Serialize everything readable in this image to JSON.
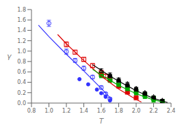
{
  "chart_data": {
    "type": "scatter",
    "title": "",
    "xlabel": "T",
    "ylabel": "γ",
    "xlim": [
      0.8,
      2.4
    ],
    "ylim": [
      0.0,
      1.8
    ],
    "xticks": [
      0.8,
      {
        "value": 1.0,
        "label": "1.0"
      },
      1.2,
      1.4,
      1.6,
      1.8,
      {
        "value": 2.0,
        "label": "2.0"
      },
      2.2,
      2.4
    ],
    "yticks": [
      {
        "value": 0.0,
        "label": "0.0"
      },
      0.2,
      0.4,
      0.6,
      0.8,
      {
        "value": 1.0,
        "label": "1.0"
      },
      1.2,
      1.4,
      1.6,
      1.8
    ],
    "grid": false,
    "series": [
      {
        "type": "scatter",
        "marker": "open_circle",
        "color": "#3333ff",
        "x": [
          1.0,
          1.2,
          1.3,
          1.4,
          1.5,
          1.6,
          1.65,
          1.7
        ],
        "values": [
          1.535,
          0.99,
          0.82,
          0.67,
          0.5,
          0.3,
          0.18,
          0.08
        ],
        "errors": [
          0.06,
          0.05,
          0.04,
          0.04,
          0.035,
          0.03,
          0.025,
          0.02
        ]
      },
      {
        "type": "scatter",
        "marker": "circle",
        "color": "#3333ff",
        "x": [
          1.35,
          1.45,
          1.55,
          1.6,
          1.65,
          1.7
        ],
        "values": [
          0.46,
          0.36,
          0.26,
          0.19,
          0.12,
          0.05
        ]
      },
      {
        "type": "scatter",
        "marker": "open_square",
        "color": "#dd0000",
        "x": [
          1.2,
          1.3,
          1.4,
          1.5,
          1.6,
          1.65,
          1.7,
          1.8,
          1.9,
          2.0
        ],
        "values": [
          1.13,
          0.98,
          0.84,
          0.72,
          0.59,
          0.52,
          0.46,
          0.33,
          0.21,
          0.1
        ],
        "errors": [
          0.05,
          0.04,
          0.04,
          0.04,
          0.03,
          0.03,
          0.03,
          0.025,
          0.02,
          0.015
        ]
      },
      {
        "type": "scatter",
        "marker": "square",
        "color": "#dd0000",
        "x": [
          1.6,
          1.7,
          1.8,
          1.9,
          2.0
        ],
        "values": [
          0.56,
          0.44,
          0.32,
          0.21,
          0.11
        ]
      },
      {
        "type": "scatter",
        "marker": "open_square",
        "color": "#00aa00",
        "x": [
          1.6,
          1.7,
          1.8,
          1.9,
          2.0,
          2.1,
          2.2,
          2.3
        ],
        "values": [
          0.55,
          0.47,
          0.38,
          0.3,
          0.22,
          0.16,
          0.09,
          0.03
        ]
      },
      {
        "type": "scatter",
        "marker": "square",
        "color": "#00aa00",
        "x": [
          1.6,
          1.7,
          1.8,
          1.9,
          2.0,
          2.1,
          2.2
        ],
        "values": [
          0.52,
          0.43,
          0.35,
          0.27,
          0.19,
          0.12,
          0.05
        ]
      },
      {
        "type": "scatter",
        "marker": "open_triangle",
        "color": "#000000",
        "x": [
          1.6,
          1.7,
          1.8,
          1.9,
          2.0,
          2.1,
          2.2,
          2.3
        ],
        "values": [
          0.62,
          0.54,
          0.45,
          0.37,
          0.28,
          0.2,
          0.12,
          0.05
        ],
        "errors": [
          0.04,
          0.04,
          0.035,
          0.03,
          0.025,
          0.02,
          0.015,
          0.01
        ]
      },
      {
        "type": "scatter",
        "marker": "square",
        "color": "#000000",
        "x": [
          1.7,
          1.8,
          1.9,
          2.0,
          2.1,
          2.2,
          2.3
        ],
        "values": [
          0.52,
          0.43,
          0.34,
          0.26,
          0.18,
          0.1,
          0.04
        ]
      },
      {
        "type": "line",
        "line_style": "solid",
        "color": "#3333ff",
        "x": [
          0.88,
          1.0,
          1.2,
          1.4,
          1.6,
          1.72
        ],
        "values": [
          1.5,
          1.28,
          0.94,
          0.62,
          0.28,
          0.07
        ]
      },
      {
        "type": "line",
        "line_style": "solid",
        "color": "#dd0000",
        "x": [
          1.1,
          1.2,
          1.4,
          1.6,
          1.8,
          2.0,
          2.06
        ],
        "values": [
          1.32,
          1.14,
          0.82,
          0.52,
          0.27,
          0.07,
          0.02
        ]
      },
      {
        "type": "line",
        "line_style": "solid",
        "color": "#00aa00",
        "x": [
          1.5,
          1.6,
          1.7,
          1.8,
          1.9,
          2.0,
          2.1,
          2.2,
          2.33
        ],
        "values": [
          0.65,
          0.54,
          0.44,
          0.34,
          0.26,
          0.18,
          0.12,
          0.06,
          0.01
        ]
      },
      {
        "type": "line",
        "line_style": "solid",
        "color": "#000000",
        "x": [
          1.5,
          1.6,
          1.7,
          1.8,
          1.9,
          2.0,
          2.1,
          2.2,
          2.36
        ],
        "values": [
          0.74,
          0.63,
          0.52,
          0.42,
          0.33,
          0.24,
          0.16,
          0.09,
          0.01
        ]
      }
    ]
  }
}
